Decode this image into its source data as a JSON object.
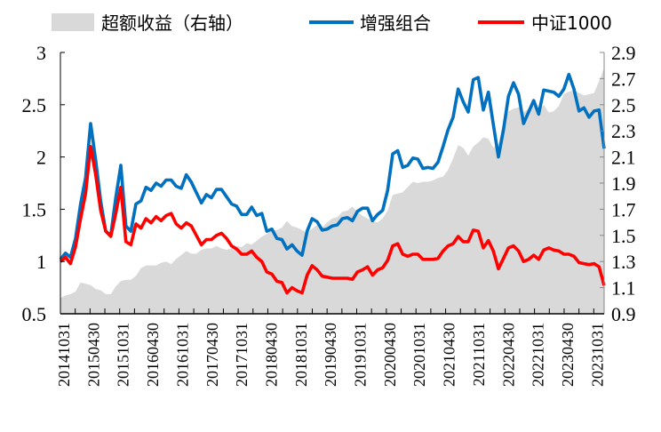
{
  "chart_data": {
    "type": "line",
    "title": "",
    "xlabel": "",
    "ylabel": "",
    "x_tick_labels": [
      "20141031",
      "20150430",
      "20151031",
      "20160430",
      "20161031",
      "20170430",
      "20171031",
      "20180430",
      "20181031",
      "20190430",
      "20191031",
      "20200430",
      "20201031",
      "20210430",
      "20211031",
      "20220430",
      "20221031",
      "20230430",
      "20231031"
    ],
    "y_left": {
      "range": [
        0.5,
        3
      ],
      "ticks": [
        "0.5",
        "1",
        "1.5",
        "2",
        "2.5",
        "3"
      ]
    },
    "y_right": {
      "range": [
        0.9,
        2.9
      ],
      "ticks": [
        "0.9",
        "1.1",
        "1.3",
        "1.5",
        "1.7",
        "1.9",
        "2.1",
        "2.3",
        "2.5",
        "2.7",
        "2.9"
      ]
    },
    "grid": false,
    "legend_position": "top",
    "series": [
      {
        "name": "超额收益（右轴）",
        "type": "area",
        "axis": "right",
        "color": "#d9d9d9",
        "values": [
          1.02,
          1.04,
          1.05,
          1.07,
          1.14,
          1.13,
          1.12,
          1.09,
          1.08,
          1.05,
          1.05,
          1.11,
          1.15,
          1.16,
          1.16,
          1.19,
          1.25,
          1.27,
          1.27,
          1.27,
          1.29,
          1.3,
          1.28,
          1.32,
          1.35,
          1.38,
          1.36,
          1.36,
          1.39,
          1.4,
          1.4,
          1.42,
          1.4,
          1.39,
          1.4,
          1.42,
          1.41,
          1.44,
          1.43,
          1.46,
          1.49,
          1.51,
          1.54,
          1.54,
          1.56,
          1.61,
          1.57,
          1.56,
          1.54,
          1.52,
          1.55,
          1.58,
          1.56,
          1.6,
          1.63,
          1.64,
          1.68,
          1.69,
          1.72,
          1.68,
          1.65,
          1.63,
          1.61,
          1.6,
          1.63,
          1.69,
          1.81,
          1.82,
          1.83,
          1.87,
          1.91,
          1.9,
          1.91,
          1.91,
          1.92,
          1.94,
          1.95,
          2.0,
          2.09,
          2.19,
          2.17,
          2.11,
          2.18,
          2.21,
          2.25,
          2.24,
          2.17,
          2.2,
          2.37,
          2.45,
          2.47,
          2.48,
          2.44,
          2.47,
          2.49,
          2.45,
          2.5,
          2.44,
          2.45,
          2.49,
          2.58,
          2.6,
          2.61,
          2.59,
          2.57,
          2.58,
          2.59,
          2.68,
          2.78
        ]
      },
      {
        "name": "增强组合",
        "type": "line",
        "axis": "left",
        "color": "#0070c0",
        "values": [
          1.02,
          1.08,
          1.04,
          1.22,
          1.55,
          1.8,
          2.32,
          1.97,
          1.58,
          1.29,
          1.25,
          1.61,
          1.92,
          1.34,
          1.29,
          1.55,
          1.58,
          1.71,
          1.68,
          1.75,
          1.72,
          1.78,
          1.78,
          1.72,
          1.7,
          1.83,
          1.76,
          1.66,
          1.56,
          1.64,
          1.61,
          1.69,
          1.69,
          1.62,
          1.55,
          1.53,
          1.45,
          1.45,
          1.52,
          1.44,
          1.46,
          1.29,
          1.31,
          1.22,
          1.21,
          1.12,
          1.16,
          1.1,
          1.06,
          1.29,
          1.41,
          1.38,
          1.3,
          1.31,
          1.34,
          1.35,
          1.41,
          1.42,
          1.39,
          1.48,
          1.51,
          1.51,
          1.39,
          1.45,
          1.49,
          1.68,
          2.03,
          2.06,
          1.9,
          1.92,
          1.99,
          1.98,
          1.89,
          1.9,
          1.89,
          1.95,
          2.1,
          2.26,
          2.38,
          2.65,
          2.53,
          2.43,
          2.74,
          2.76,
          2.45,
          2.62,
          2.31,
          2.0,
          2.26,
          2.58,
          2.71,
          2.6,
          2.32,
          2.43,
          2.54,
          2.41,
          2.64,
          2.63,
          2.62,
          2.58,
          2.65,
          2.79,
          2.65,
          2.44,
          2.47,
          2.38,
          2.44,
          2.45,
          2.08
        ]
      },
      {
        "name": "中证1000",
        "type": "line",
        "axis": "left",
        "color": "#ff0000",
        "values": [
          1.0,
          1.04,
          0.98,
          1.14,
          1.41,
          1.65,
          2.1,
          1.83,
          1.49,
          1.29,
          1.24,
          1.46,
          1.71,
          1.19,
          1.16,
          1.36,
          1.32,
          1.41,
          1.37,
          1.43,
          1.39,
          1.44,
          1.46,
          1.36,
          1.32,
          1.37,
          1.34,
          1.25,
          1.16,
          1.21,
          1.21,
          1.25,
          1.27,
          1.22,
          1.15,
          1.12,
          1.07,
          1.07,
          1.1,
          1.04,
          1.0,
          0.9,
          0.88,
          0.81,
          0.8,
          0.7,
          0.75,
          0.72,
          0.7,
          0.87,
          0.96,
          0.92,
          0.86,
          0.85,
          0.84,
          0.84,
          0.84,
          0.84,
          0.83,
          0.9,
          0.92,
          0.95,
          0.87,
          0.92,
          0.94,
          1.01,
          1.15,
          1.17,
          1.07,
          1.05,
          1.07,
          1.07,
          1.02,
          1.02,
          1.02,
          1.03,
          1.1,
          1.15,
          1.17,
          1.24,
          1.19,
          1.19,
          1.3,
          1.29,
          1.13,
          1.2,
          1.1,
          0.93,
          1.03,
          1.13,
          1.15,
          1.1,
          1.0,
          1.02,
          1.06,
          1.02,
          1.11,
          1.13,
          1.11,
          1.1,
          1.07,
          1.07,
          1.05,
          0.99,
          0.98,
          0.97,
          0.98,
          0.95,
          0.77
        ]
      }
    ]
  }
}
